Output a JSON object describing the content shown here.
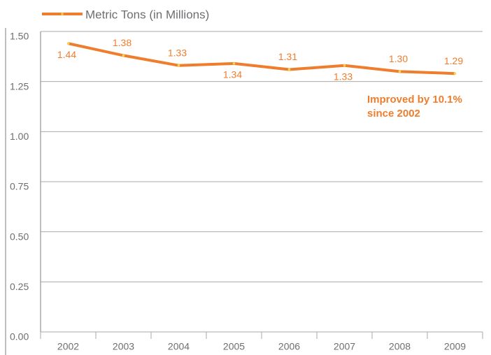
{
  "chart_data": {
    "type": "line",
    "categories": [
      "2002",
      "2003",
      "2004",
      "2005",
      "2006",
      "2007",
      "2008",
      "2009"
    ],
    "series": [
      {
        "name": "Metric Tons (in Millions)",
        "color": "#ef7d2d",
        "values": [
          1.44,
          1.38,
          1.33,
          1.34,
          1.31,
          1.33,
          1.3,
          1.29
        ],
        "value_labels": [
          "1.44",
          "1.38",
          "1.33",
          "1.34",
          "1.31",
          "1.33",
          "1.30",
          "1.29"
        ]
      }
    ],
    "ylim": [
      0,
      1.5
    ],
    "yticks": [
      {
        "value": 0,
        "label": "0.00"
      },
      {
        "value": 0.25,
        "label": "0.25"
      },
      {
        "value": 0.5,
        "label": "0.50"
      },
      {
        "value": 0.75,
        "label": "0.75"
      },
      {
        "value": 1.0,
        "label": "1.00"
      },
      {
        "value": 1.25,
        "label": "1.25"
      },
      {
        "value": 1.5,
        "label": "1.50"
      }
    ],
    "grid": true,
    "legend": "top-left",
    "annotation": [
      "Improved by 10.1%",
      "since 2002"
    ]
  }
}
